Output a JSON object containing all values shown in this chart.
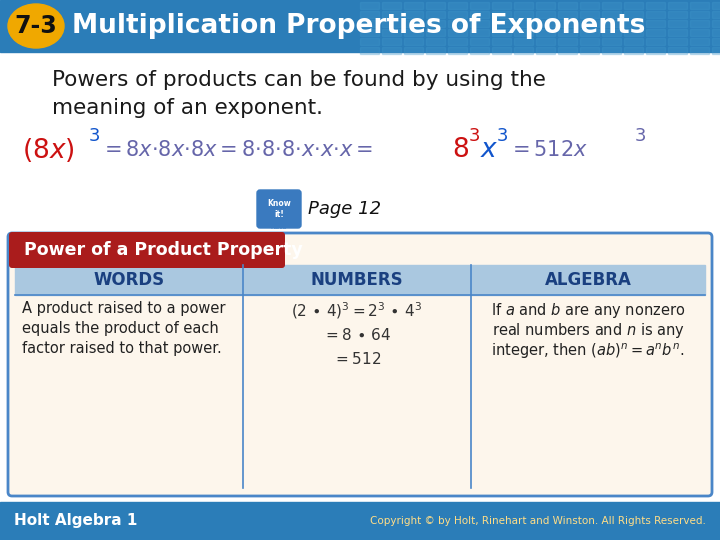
{
  "title_number": "7-3",
  "title_text": "Multiplication Properties of Exponents",
  "header_bg": "#2b7db8",
  "badge_color": "#f0a800",
  "body_bg": "#ffffff",
  "intro_line1": "Powers of products can be found by using the",
  "intro_line2": "meaning of an exponent.",
  "page_ref": "Page 12",
  "table_title": "Power of a Product Property",
  "table_title_bg": "#aa1c1c",
  "table_header_bg": "#aac8e0",
  "table_body_bg": "#fdf6ec",
  "table_border": "#4a86c8",
  "col_headers": [
    "WORDS",
    "NUMBERS",
    "ALGEBRA"
  ],
  "col_header_color": "#1a4080",
  "words_lines": [
    "A product raised to a power",
    "equals the product of each",
    "factor raised to that power."
  ],
  "footer_bg": "#2b7db8",
  "footer_left": "Holt Algebra 1",
  "footer_right": "Copyright © by Holt, Rinehart and Winston. All Rights Reserved.",
  "red_color": "#cc1111",
  "blue_color": "#1155cc",
  "gray_formula_color": "#6666aa"
}
